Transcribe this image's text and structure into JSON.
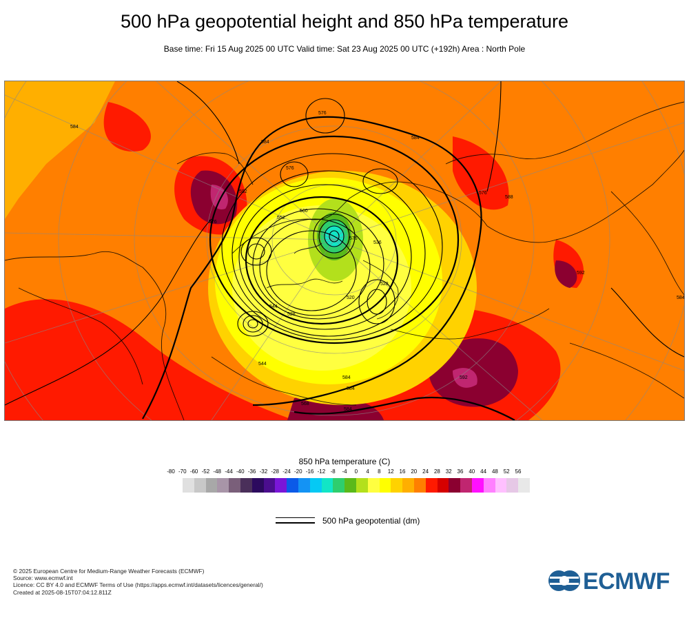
{
  "title": "500 hPa geopotential height and 850 hPa temperature",
  "subtitle": "Base time: Fri 15 Aug 2025 00 UTC Valid time: Sat 23 Aug 2025 00 UTC (+192h) Area : North Pole",
  "legend": {
    "temperature_title": "850 hPa temperature (C)",
    "ticks": [
      "-80",
      "-70",
      "-60",
      "-52",
      "-48",
      "-44",
      "-40",
      "-36",
      "-32",
      "-28",
      "-24",
      "-20",
      "-16",
      "-12",
      "-8",
      "-4",
      "0",
      "4",
      "8",
      "12",
      "16",
      "20",
      "24",
      "28",
      "32",
      "36",
      "40",
      "44",
      "48",
      "52",
      "56"
    ],
    "colors": [
      "#e0e0e0",
      "#c8c8c8",
      "#a8a8a8",
      "#a895a8",
      "#7a5f7a",
      "#4a2f5a",
      "#2c0a5e",
      "#4b0e8e",
      "#7a16d8",
      "#0b5ae8",
      "#1493f4",
      "#05c9f4",
      "#12e5c6",
      "#2ece6e",
      "#5ab91a",
      "#b3e01c",
      "#ffff40",
      "#ffff00",
      "#ffd200",
      "#ffaf00",
      "#ff7f00",
      "#ff1a00",
      "#d50000",
      "#8b0030",
      "#c02670",
      "#ff10ff",
      "#ff80ff",
      "#ffc0ff",
      "#e6c8e6",
      "#e8e8e8"
    ],
    "geopotential_label": "500 hPa geopotential (dm)"
  },
  "map": {
    "contour_labels": [
      "576",
      "584",
      "584",
      "576",
      "592",
      "576",
      "584",
      "584",
      "592",
      "576",
      "560",
      "552",
      "536",
      "544",
      "520",
      "528",
      "528",
      "544",
      "568",
      "584",
      "576",
      "588",
      "592",
      "584",
      "584"
    ]
  },
  "footer": {
    "copyright": "© 2025 European Centre for Medium-Range Weather Forecasts (ECMWF)",
    "source": "Source: www.ecmwf.int",
    "licence": "Licence: CC BY 4.0 and ECMWF Terms of Use (https://apps.ecmwf.int/datasets/licences/general/)",
    "created": "Created at 2025-08-15T07:04:12.811Z"
  },
  "logo": {
    "text": "ECMWF",
    "color": "#1f5f95"
  }
}
